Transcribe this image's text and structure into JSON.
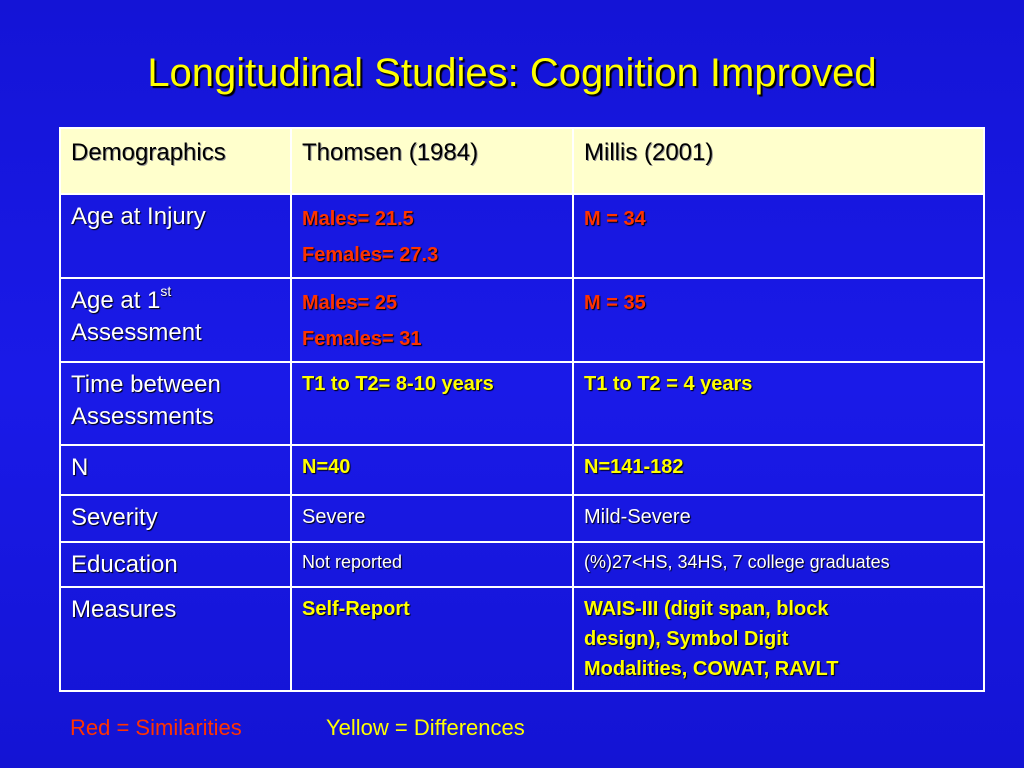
{
  "title": "Longitudinal Studies: Cognition Improved",
  "table": {
    "headers": [
      "Demographics",
      "Thomsen (1984)",
      "Millis (2001)"
    ],
    "rows": {
      "age_injury": {
        "label": "Age at Injury",
        "thomsen": [
          "Males= 21.5",
          "Females= 27.3"
        ],
        "millis": "M = 34"
      },
      "age_assessment": {
        "label_main": "Age at 1",
        "label_sup": "st",
        "label_line2": "Assessment",
        "thomsen": [
          "Males= 25",
          "Females= 31"
        ],
        "millis": "M = 35"
      },
      "time_between": {
        "label_line1": "Time between",
        "label_line2": "Assessments",
        "thomsen": "T1 to T2= 8-10 years",
        "millis": "T1 to T2 = 4 years"
      },
      "n": {
        "label": "N",
        "thomsen": "N=40",
        "millis": "N=141-182"
      },
      "severity": {
        "label": "Severity",
        "thomsen": "Severe",
        "millis": "Mild-Severe"
      },
      "education": {
        "label": "Education",
        "thomsen": "Not reported",
        "millis": "(%)27<HS, 34HS, 7 college graduates"
      },
      "measures": {
        "label": "Measures",
        "thomsen": "Self-Report",
        "millis": [
          "WAIS-III (digit span, block",
          "design), Symbol Digit",
          "Modalities, COWAT, RAVLT"
        ]
      }
    }
  },
  "legend": {
    "red": "Red = Similarities",
    "yellow": "Yellow = Differences"
  },
  "colors": {
    "background": "#1a1ae8",
    "title": "#ffff00",
    "similarities": "#ff3300",
    "differences": "#ffff00",
    "header_bg": "#ffffcc"
  }
}
